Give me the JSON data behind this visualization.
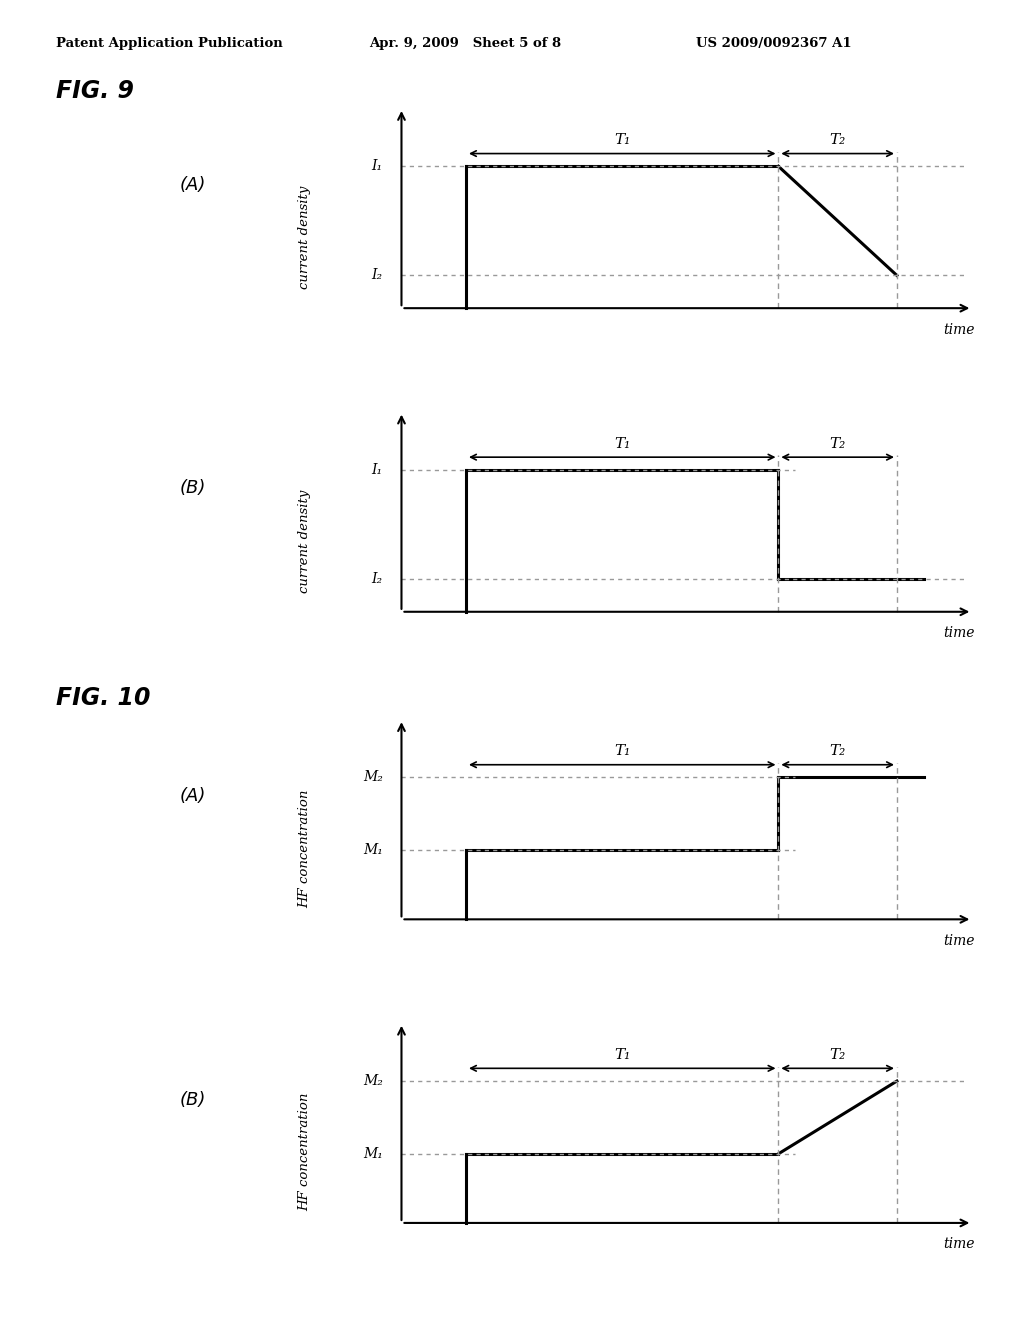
{
  "header_left": "Patent Application Publication",
  "header_center": "Apr. 9, 2009   Sheet 5 of 8",
  "header_right": "US 2009/0092367 A1",
  "fig9_label": "FIG. 9",
  "fig10_label": "FIG. 10",
  "panel_A": "(A)",
  "panel_B": "(B)",
  "bg_color": "#ffffff",
  "line_color": "#000000",
  "dash_color": "#999999",
  "T1_label": "T₁",
  "T2_label": "T₂",
  "I1_label": "I₁",
  "I2_label": "I₂",
  "M1_label": "M₁",
  "M2_label": "M₂",
  "ylabel_9": "current density",
  "ylabel_10": "HF concentration",
  "xlabel": "time"
}
